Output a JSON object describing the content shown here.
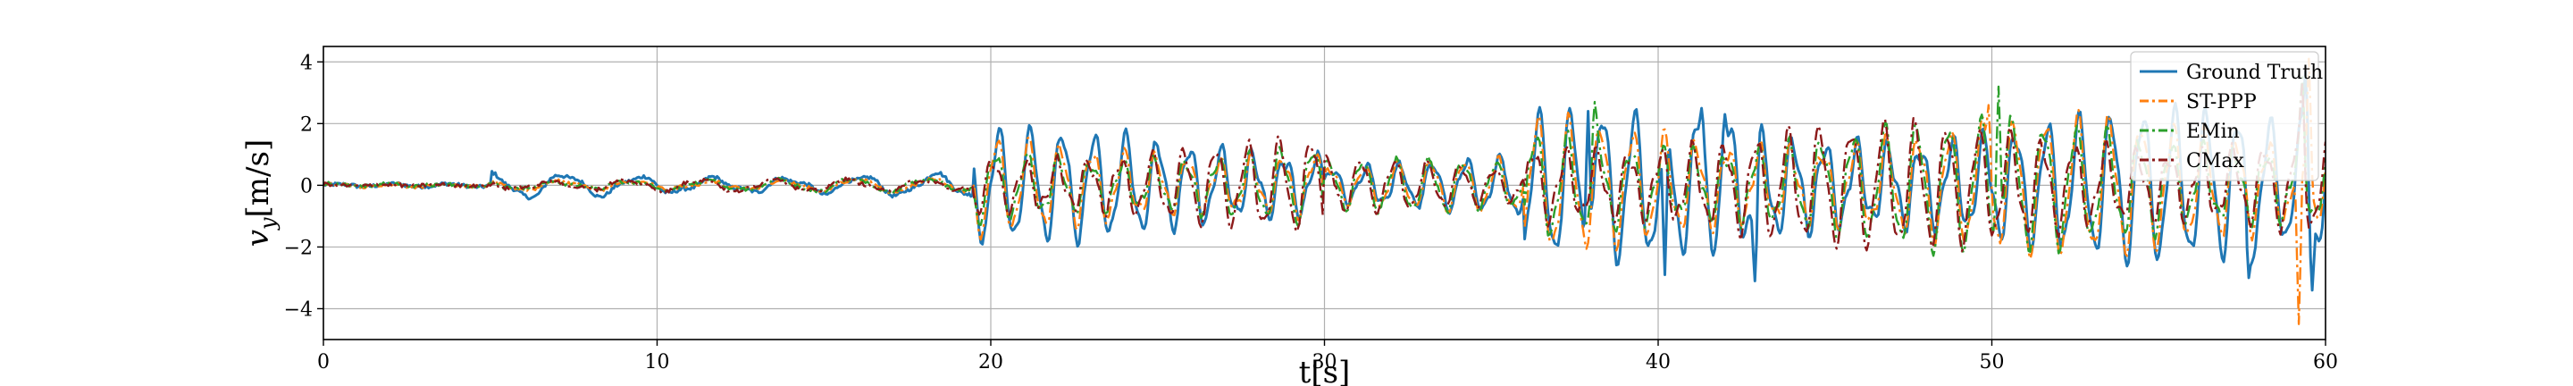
{
  "chart_data": {
    "type": "line",
    "title": "",
    "xlabel": "t[s]",
    "ylabel_symbol": "v",
    "ylabel_subscript": "y",
    "ylabel_unit": "[m/s]",
    "xlim": [
      0,
      60
    ],
    "ylim": [
      -5,
      4.5
    ],
    "xticks": [
      0,
      10,
      20,
      30,
      40,
      50,
      60
    ],
    "yticks": [
      -4,
      -2,
      0,
      2,
      4
    ],
    "grid": true,
    "legend_position": "top-right",
    "sample_dt": 0.05,
    "series": [
      {
        "name": "Ground Truth",
        "color": "#1f77b4",
        "style": "solid",
        "segments": [
          {
            "t0": 0,
            "t1": 5,
            "amp": 0.05,
            "freq": 0.6
          },
          {
            "t0": 5,
            "t1": 19.5,
            "amp": 0.4,
            "freq": 0.45
          },
          {
            "t0": 19.5,
            "t1": 30,
            "amp": 1.7,
            "freq": 1.05
          },
          {
            "t0": 30,
            "t1": 36,
            "amp": 1.0,
            "freq": 1.0
          },
          {
            "t0": 36,
            "t1": 60,
            "amp": 2.3,
            "freq": 1.05
          }
        ],
        "peaks": [
          {
            "t": 37.9,
            "v": 2.4
          },
          {
            "t": 41.3,
            "v": 2.5
          },
          {
            "t": 42.0,
            "v": 2.3
          },
          {
            "t": 40.2,
            "v": -2.9
          },
          {
            "t": 42.9,
            "v": -3.1
          },
          {
            "t": 57.7,
            "v": -3.0
          },
          {
            "t": 59.4,
            "v": 3.7
          },
          {
            "t": 59.6,
            "v": -3.4
          }
        ]
      },
      {
        "name": "ST-PPP",
        "color": "#ff7f0e",
        "style": "dashdot",
        "segments": [
          {
            "t0": 0,
            "t1": 5,
            "amp": 0.05,
            "freq": 0.6
          },
          {
            "t0": 5,
            "t1": 19.5,
            "amp": 0.2,
            "freq": 0.45
          },
          {
            "t0": 19.5,
            "t1": 30,
            "amp": 1.5,
            "freq": 1.05
          },
          {
            "t0": 30,
            "t1": 36,
            "amp": 0.8,
            "freq": 1.0
          },
          {
            "t0": 36,
            "t1": 60,
            "amp": 2.1,
            "freq": 1.05
          }
        ],
        "peaks": [
          {
            "t": 49.9,
            "v": 2.6
          },
          {
            "t": 59.2,
            "v": -4.5
          },
          {
            "t": 59.5,
            "v": 4.1
          }
        ]
      },
      {
        "name": "EMin",
        "color": "#2ca02c",
        "style": "dashdot",
        "segments": [
          {
            "t0": 0,
            "t1": 5,
            "amp": 0.05,
            "freq": 0.6
          },
          {
            "t0": 5,
            "t1": 19.5,
            "amp": 0.2,
            "freq": 0.45
          },
          {
            "t0": 19.5,
            "t1": 30,
            "amp": 1.4,
            "freq": 1.05
          },
          {
            "t0": 30,
            "t1": 36,
            "amp": 0.8,
            "freq": 1.0
          },
          {
            "t0": 36,
            "t1": 60,
            "amp": 2.0,
            "freq": 1.05
          }
        ],
        "peaks": [
          {
            "t": 38.1,
            "v": 2.7
          },
          {
            "t": 50.2,
            "v": 3.2
          },
          {
            "t": 59.3,
            "v": 3.5
          }
        ]
      },
      {
        "name": "CMax",
        "color": "#8c1a1a",
        "style": "dashdot",
        "segments": [
          {
            "t0": 0,
            "t1": 5,
            "amp": 0.04,
            "freq": 0.6
          },
          {
            "t0": 5,
            "t1": 19.5,
            "amp": 0.2,
            "freq": 0.45
          },
          {
            "t0": 19.5,
            "t1": 30,
            "amp": 1.4,
            "freq": 1.05
          },
          {
            "t0": 30,
            "t1": 36,
            "amp": 0.8,
            "freq": 1.0
          },
          {
            "t0": 36,
            "t1": 60,
            "amp": 1.9,
            "freq": 1.05
          }
        ],
        "peaks": [
          {
            "t": 59.3,
            "v": 3.3
          }
        ]
      }
    ]
  }
}
